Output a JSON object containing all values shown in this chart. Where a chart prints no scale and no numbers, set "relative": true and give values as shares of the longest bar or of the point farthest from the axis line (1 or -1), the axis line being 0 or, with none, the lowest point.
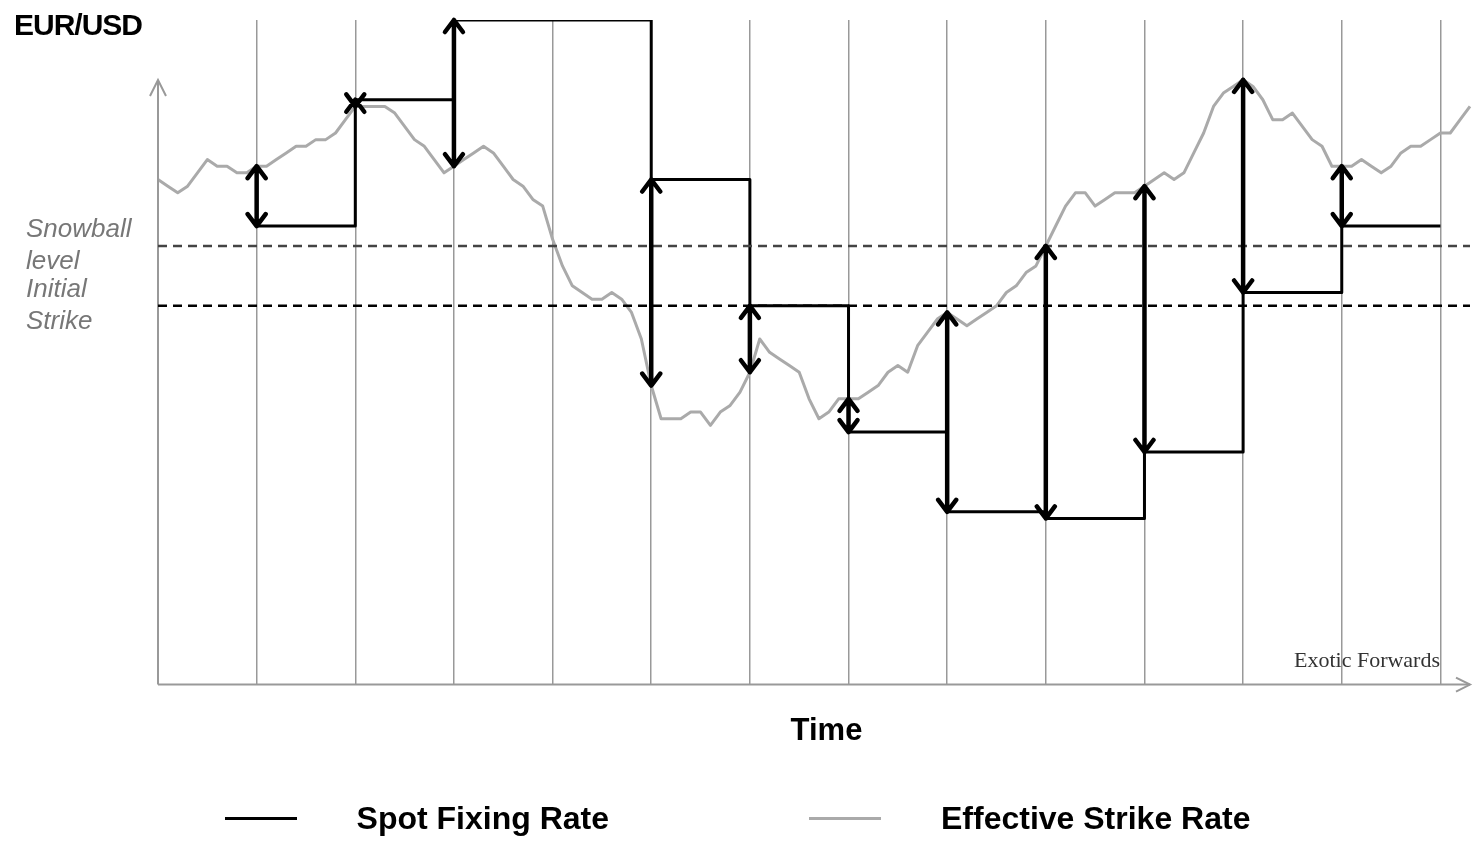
{
  "chart_data": {
    "type": "line",
    "relative": true,
    "ylabel": "EUR/USD",
    "xlabel": "Time",
    "categories": [
      null,
      null,
      null,
      null,
      null,
      null,
      null,
      null,
      null,
      null,
      null,
      null,
      null,
      null,
      null,
      null,
      null,
      null,
      null,
      null,
      null,
      null,
      null,
      null,
      null,
      null,
      null,
      null,
      null,
      null,
      null,
      null,
      null,
      null,
      null,
      null,
      null,
      null,
      null,
      null,
      null,
      null,
      null,
      null,
      null,
      null,
      null,
      null,
      null,
      null,
      null,
      null,
      null,
      null,
      null,
      null,
      null,
      null,
      null,
      null,
      null,
      null,
      null,
      null,
      null,
      null,
      null,
      null,
      null,
      null,
      null,
      null,
      null,
      null,
      null,
      null,
      null,
      null,
      null,
      null,
      null,
      null,
      null,
      null,
      null,
      null,
      null,
      null,
      null,
      null,
      null,
      null,
      null,
      null,
      null,
      null,
      null,
      null,
      null,
      null,
      null,
      null,
      null,
      null,
      null,
      null,
      null,
      null,
      null,
      null,
      null,
      null,
      null,
      null,
      null,
      null,
      null,
      null,
      null,
      null,
      null,
      null,
      null,
      null,
      null,
      null,
      null,
      null,
      null,
      null,
      null,
      null,
      null,
      null
    ],
    "grid": "x",
    "legend": "bottom",
    "series": [
      {
        "name": "Spot Fixing Rate",
        "color": "#000000",
        "type": "step",
        "values": [
          null,
          null,
          null,
          null,
          null,
          null,
          null,
          null,
          null,
          null,
          0.69,
          0.69,
          0.69,
          0.69,
          0.69,
          0.69,
          0.69,
          0.69,
          0.69,
          0.69,
          0.88,
          0.88,
          0.88,
          0.88,
          0.88,
          0.88,
          0.88,
          0.88,
          0.88,
          0.88,
          1,
          1,
          1,
          1,
          1,
          1,
          1,
          1,
          1,
          1,
          1,
          1,
          1,
          1,
          1,
          1,
          1,
          1,
          1,
          1,
          0.76,
          0.76,
          0.76,
          0.76,
          0.76,
          0.76,
          0.76,
          0.76,
          0.76,
          0.76,
          0.57,
          0.57,
          0.57,
          0.57,
          0.57,
          0.57,
          0.57,
          0.57,
          0.57,
          0.57,
          0.38,
          0.38,
          0.38,
          0.38,
          0.38,
          0.38,
          0.38,
          0.38,
          0.38,
          0.38,
          0.26,
          0.26,
          0.26,
          0.26,
          0.26,
          0.26,
          0.26,
          0.26,
          0.26,
          0.26,
          0.25,
          0.25,
          0.25,
          0.25,
          0.25,
          0.25,
          0.25,
          0.25,
          0.25,
          0.25,
          0.35,
          0.35,
          0.35,
          0.35,
          0.35,
          0.35,
          0.35,
          0.35,
          0.35,
          0.35,
          0.59,
          0.59,
          0.59,
          0.59,
          0.59,
          0.59,
          0.59,
          0.59,
          0.59,
          0.59,
          0.69,
          0.69,
          0.69,
          0.69,
          0.69,
          0.69,
          0.69,
          0.69,
          0.69,
          0.69,
          0.69,
          null,
          null,
          null
        ]
      },
      {
        "name": "Effective Strike Rate",
        "color": "#aaaaaa",
        "values": [
          0.76,
          0.75,
          0.74,
          0.75,
          0.77,
          0.79,
          0.78,
          0.78,
          0.77,
          0.77,
          0.78,
          0.78,
          0.79,
          0.8,
          0.81,
          0.81,
          0.82,
          0.82,
          0.83,
          0.85,
          0.87,
          0.87,
          0.87,
          0.87,
          0.86,
          0.84,
          0.82,
          0.81,
          0.79,
          0.77,
          0.78,
          0.79,
          0.8,
          0.81,
          0.8,
          0.78,
          0.76,
          0.75,
          0.73,
          0.72,
          0.67,
          0.63,
          0.6,
          0.59,
          0.58,
          0.58,
          0.59,
          0.58,
          0.56,
          0.52,
          0.45,
          0.4,
          0.4,
          0.4,
          0.41,
          0.41,
          0.39,
          0.41,
          0.42,
          0.44,
          0.47,
          0.52,
          0.5,
          0.49,
          0.48,
          0.47,
          0.43,
          0.4,
          0.41,
          0.43,
          0.43,
          0.43,
          0.44,
          0.45,
          0.47,
          0.48,
          0.47,
          0.51,
          0.53,
          0.55,
          0.56,
          0.55,
          0.54,
          0.55,
          0.56,
          0.57,
          0.59,
          0.6,
          0.62,
          0.63,
          0.66,
          0.69,
          0.72,
          0.74,
          0.74,
          0.72,
          0.73,
          0.74,
          0.74,
          0.74,
          0.75,
          0.76,
          0.77,
          0.76,
          0.77,
          0.8,
          0.83,
          0.87,
          0.89,
          0.9,
          0.91,
          0.9,
          0.88,
          0.85,
          0.85,
          0.86,
          0.84,
          0.82,
          0.81,
          0.78,
          0.78,
          0.78,
          0.79,
          0.78,
          0.77,
          0.78,
          0.8,
          0.81,
          0.81,
          0.82,
          0.83,
          0.83,
          0.85,
          0.87
        ]
      }
    ],
    "ref_lines": [
      {
        "axis": "y",
        "value": 0.66,
        "label": "Snowball level",
        "color": "#444444",
        "line_style": "dashed"
      },
      {
        "axis": "y",
        "value": 0.57,
        "label": "Initial Strike",
        "color": "#000000",
        "line_style": "dashed"
      }
    ],
    "annotations": [
      "Exotic Forwards"
    ]
  }
}
